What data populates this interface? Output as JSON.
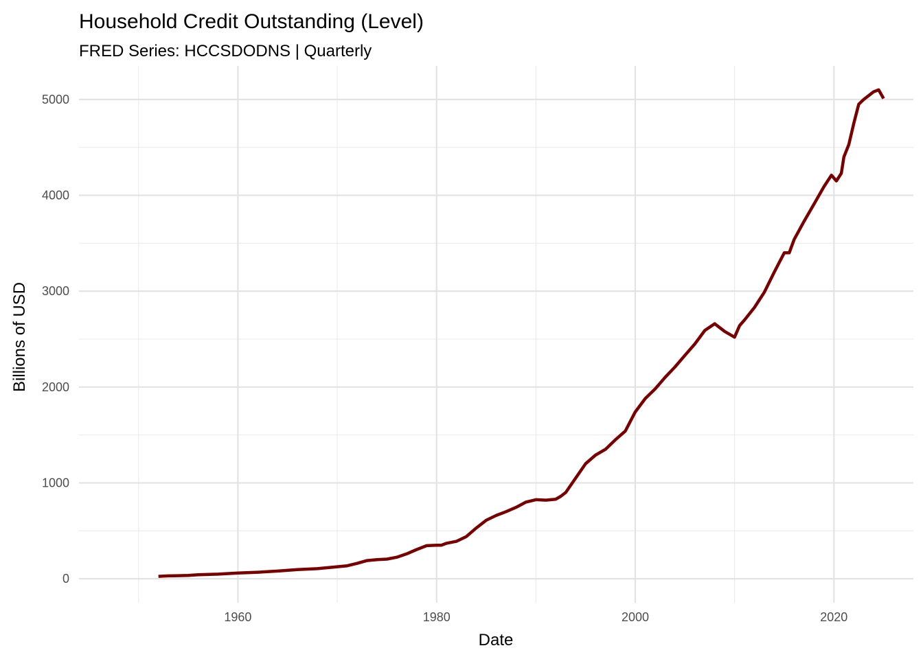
{
  "chart_data": {
    "type": "line",
    "title": "Household Credit Outstanding (Level)",
    "subtitle": "FRED Series: HCCSDODNS | Quarterly",
    "xlabel": "Date",
    "ylabel": "Billions of USD",
    "xlim": [
      1944,
      2028
    ],
    "ylim": [
      -250,
      5350
    ],
    "x_ticks": [
      1960,
      1980,
      2000,
      2020
    ],
    "x_tick_labels": [
      "1960",
      "1980",
      "2000",
      "2020"
    ],
    "x_minor_ticks": [
      1950,
      1970,
      1990,
      2010
    ],
    "y_ticks": [
      0,
      1000,
      2000,
      3000,
      4000,
      5000
    ],
    "y_tick_labels": [
      "0",
      "1000",
      "2000",
      "3000",
      "4000",
      "5000"
    ],
    "y_minor_ticks": [
      500,
      1500,
      2500,
      3500,
      4500
    ],
    "grid": true,
    "line_color": "#7a0000",
    "series": [
      {
        "x": [
          1952.0,
          1953.0,
          1954.0,
          1955.0,
          1956.0,
          1958.0,
          1960.0,
          1962.0,
          1964.0,
          1966.0,
          1968.0,
          1970.0,
          1971.0,
          1972.0,
          1973.0,
          1974.0,
          1975.0,
          1976.0,
          1977.0,
          1978.0,
          1979.0,
          1980.0,
          1980.5,
          1981.0,
          1982.0,
          1983.0,
          1984.0,
          1985.0,
          1986.0,
          1987.0,
          1988.0,
          1989.0,
          1990.0,
          1991.0,
          1992.0,
          1992.5,
          1993.0,
          1994.0,
          1995.0,
          1996.0,
          1997.0,
          1998.0,
          1999.0,
          2000.0,
          2001.0,
          2002.0,
          2003.0,
          2004.0,
          2005.0,
          2006.0,
          2007.0,
          2008.0,
          2008.5,
          2009.0,
          2010.0,
          2010.5,
          2011.0,
          2012.0,
          2013.0,
          2014.0,
          2015.0,
          2015.5,
          2016.0,
          2017.0,
          2018.0,
          2019.0,
          2019.75,
          2020.25,
          2020.75,
          2021.0,
          2021.5,
          2022.0,
          2022.5,
          2023.0,
          2023.5,
          2024.0,
          2024.5,
          2025.0
        ],
        "y": [
          25,
          30,
          32,
          35,
          42,
          48,
          60,
          68,
          80,
          95,
          105,
          125,
          135,
          160,
          190,
          200,
          205,
          225,
          260,
          305,
          345,
          350,
          350,
          370,
          390,
          440,
          530,
          610,
          660,
          700,
          745,
          800,
          825,
          820,
          830,
          860,
          900,
          1050,
          1200,
          1290,
          1350,
          1450,
          1540,
          1740,
          1880,
          1980,
          2100,
          2210,
          2330,
          2450,
          2590,
          2660,
          2620,
          2580,
          2520,
          2640,
          2700,
          2830,
          2990,
          3200,
          3400,
          3400,
          3540,
          3730,
          3910,
          4090,
          4210,
          4150,
          4230,
          4400,
          4530,
          4750,
          4950,
          5000,
          5040,
          5080,
          5100,
          5010
        ]
      }
    ]
  }
}
